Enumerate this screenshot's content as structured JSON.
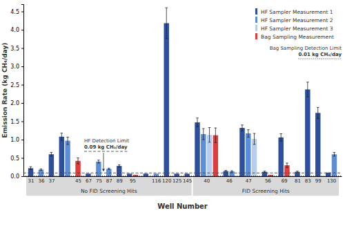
{
  "chart_data": {
    "type": "bar",
    "y_label": "Emission Rate (kg CH₄/day)",
    "x_label": "Well Number",
    "categories": [
      "31",
      "36",
      "37",
      null,
      "45",
      "67",
      "75",
      "87",
      "89",
      "95",
      null,
      "116",
      "120",
      "125",
      "145",
      "40",
      "46",
      "47",
      "56",
      "69",
      "81",
      "83",
      "99",
      "130"
    ],
    "groups": [
      {
        "name": "No FID Screening Hits",
        "count": 15
      },
      {
        "name": "FID Screening Hits",
        "count": 9
      }
    ],
    "series": [
      {
        "name": "HF Sampler Measurement 1",
        "color": "#2e4f9e",
        "values": [
          0.22,
          null,
          0.6,
          1.08,
          null,
          0.07,
          null,
          null,
          0.28,
          0.07,
          0.07,
          null,
          4.18,
          0.07,
          0.07,
          1.47,
          0.14,
          1.32,
          0.12,
          1.06,
          0.12,
          2.37,
          1.73,
          0.1
        ],
        "errors": [
          0.04,
          null,
          0.05,
          0.1,
          null,
          null,
          null,
          null,
          0.03,
          null,
          null,
          null,
          0.42,
          null,
          null,
          0.12,
          0.02,
          0.08,
          0.02,
          0.1,
          0.02,
          0.2,
          0.15,
          null
        ]
      },
      {
        "name": "HF Sampler Measurement 2",
        "color": "#5b8ed8",
        "values": [
          null,
          0.18,
          null,
          0.97,
          null,
          null,
          0.4,
          0.2,
          null,
          null,
          null,
          0.07,
          null,
          null,
          null,
          1.15,
          0.13,
          1.17,
          null,
          null,
          null,
          null,
          null,
          0.6
        ],
        "errors": [
          null,
          0.02,
          null,
          0.1,
          null,
          null,
          0.04,
          0.02,
          null,
          null,
          null,
          null,
          null,
          null,
          null,
          0.15,
          0.02,
          0.1,
          null,
          null,
          null,
          null,
          null,
          0.05
        ]
      },
      {
        "name": "HF Sampler Measurement 3",
        "color": "#b7cdee",
        "values": [
          null,
          null,
          null,
          null,
          null,
          null,
          null,
          null,
          null,
          null,
          null,
          null,
          null,
          null,
          null,
          1.13,
          null,
          1.02,
          null,
          null,
          null,
          null,
          null,
          null
        ],
        "errors": [
          null,
          null,
          null,
          null,
          null,
          null,
          null,
          null,
          null,
          null,
          null,
          null,
          null,
          null,
          null,
          0.2,
          null,
          0.15,
          null,
          null,
          null,
          null,
          null,
          null
        ]
      },
      {
        "name": "Bag Sampling Measurement",
        "color": "#e03c3c",
        "values": [
          null,
          null,
          null,
          null,
          0.42,
          null,
          null,
          null,
          null,
          0.04,
          null,
          null,
          null,
          null,
          null,
          1.12,
          null,
          null,
          0.04,
          0.3,
          null,
          null,
          null,
          null
        ],
        "errors": [
          null,
          null,
          null,
          null,
          0.08,
          null,
          null,
          null,
          null,
          null,
          null,
          null,
          null,
          null,
          null,
          0.2,
          null,
          null,
          null,
          0.06,
          null,
          null,
          null,
          null
        ]
      }
    ],
    "detection_limits": [
      {
        "name": "HF Detection Limit",
        "value": 0.09,
        "label": "0.09 kg CH₄/day",
        "color": "#444444",
        "line_style": "dashed"
      },
      {
        "name": "Bag Sampling Detection Limit",
        "value": 0.01,
        "label": "0.01 kg CH₄/day",
        "color": "#333333",
        "line_style": "dotted"
      }
    ],
    "ylim": [
      0,
      4.7
    ],
    "yticks": [
      {
        "value": 0,
        "label": "0.0"
      },
      0.5,
      {
        "value": 1,
        "label": "1.0"
      },
      1.5,
      {
        "value": 2,
        "label": "2.0"
      },
      2.5,
      {
        "value": 3,
        "label": "3.0"
      },
      3.5,
      {
        "value": 4,
        "label": "4.0"
      },
      4.5
    ],
    "grid": false,
    "legend": "upper right"
  }
}
